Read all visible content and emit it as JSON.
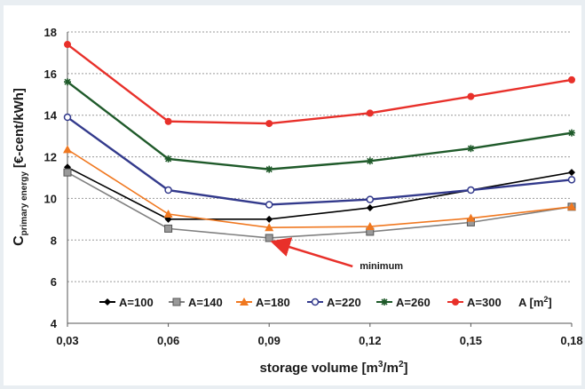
{
  "chart_data": {
    "type": "line",
    "xlabel_main": "storage volume [m",
    "xlabel_sup1": "3",
    "xlabel_mid": "/m",
    "xlabel_sup2": "2",
    "xlabel_end": "]",
    "ylabel_main": "C",
    "ylabel_sub": "primary energy",
    "ylabel_unit": "[€-cent/kWh]",
    "x_tick_labels": [
      "0,03",
      "0,06",
      "0,09",
      "0,12",
      "0,15",
      "0,18"
    ],
    "x": [
      0.03,
      0.06,
      0.09,
      0.12,
      0.15,
      0.18
    ],
    "y_tick_labels": [
      "4",
      "6",
      "8",
      "10",
      "12",
      "14",
      "16",
      "18"
    ],
    "ylim": [
      4,
      18
    ],
    "grid": "horizontal dashed",
    "series": [
      {
        "name": "A=100",
        "color": "#000000",
        "marker": "diamond",
        "values": [
          11.5,
          9.0,
          9.0,
          9.55,
          10.4,
          11.25
        ]
      },
      {
        "name": "A=140",
        "color": "#808080",
        "marker": "square",
        "values": [
          11.25,
          8.55,
          8.1,
          8.4,
          8.85,
          9.6
        ]
      },
      {
        "name": "A=180",
        "color": "#f07820",
        "marker": "triangle",
        "values": [
          12.35,
          9.25,
          8.6,
          8.65,
          9.05,
          9.6
        ]
      },
      {
        "name": "A=220",
        "color": "#333a8c",
        "marker": "circle-open",
        "values": [
          13.9,
          10.4,
          9.7,
          9.95,
          10.4,
          10.9
        ]
      },
      {
        "name": "A=260",
        "color": "#1f5a2a",
        "marker": "star",
        "values": [
          15.6,
          11.9,
          11.4,
          11.8,
          12.4,
          13.15
        ]
      },
      {
        "name": "A=300",
        "color": "#e8302a",
        "marker": "circle",
        "values": [
          17.4,
          13.7,
          13.6,
          14.1,
          14.9,
          15.7
        ]
      }
    ],
    "legend_unit_main": "A [m",
    "legend_unit_sup": "2",
    "legend_unit_end": "]",
    "annotation": {
      "text": "minimum",
      "x": 0.09,
      "y": 8.1
    }
  }
}
